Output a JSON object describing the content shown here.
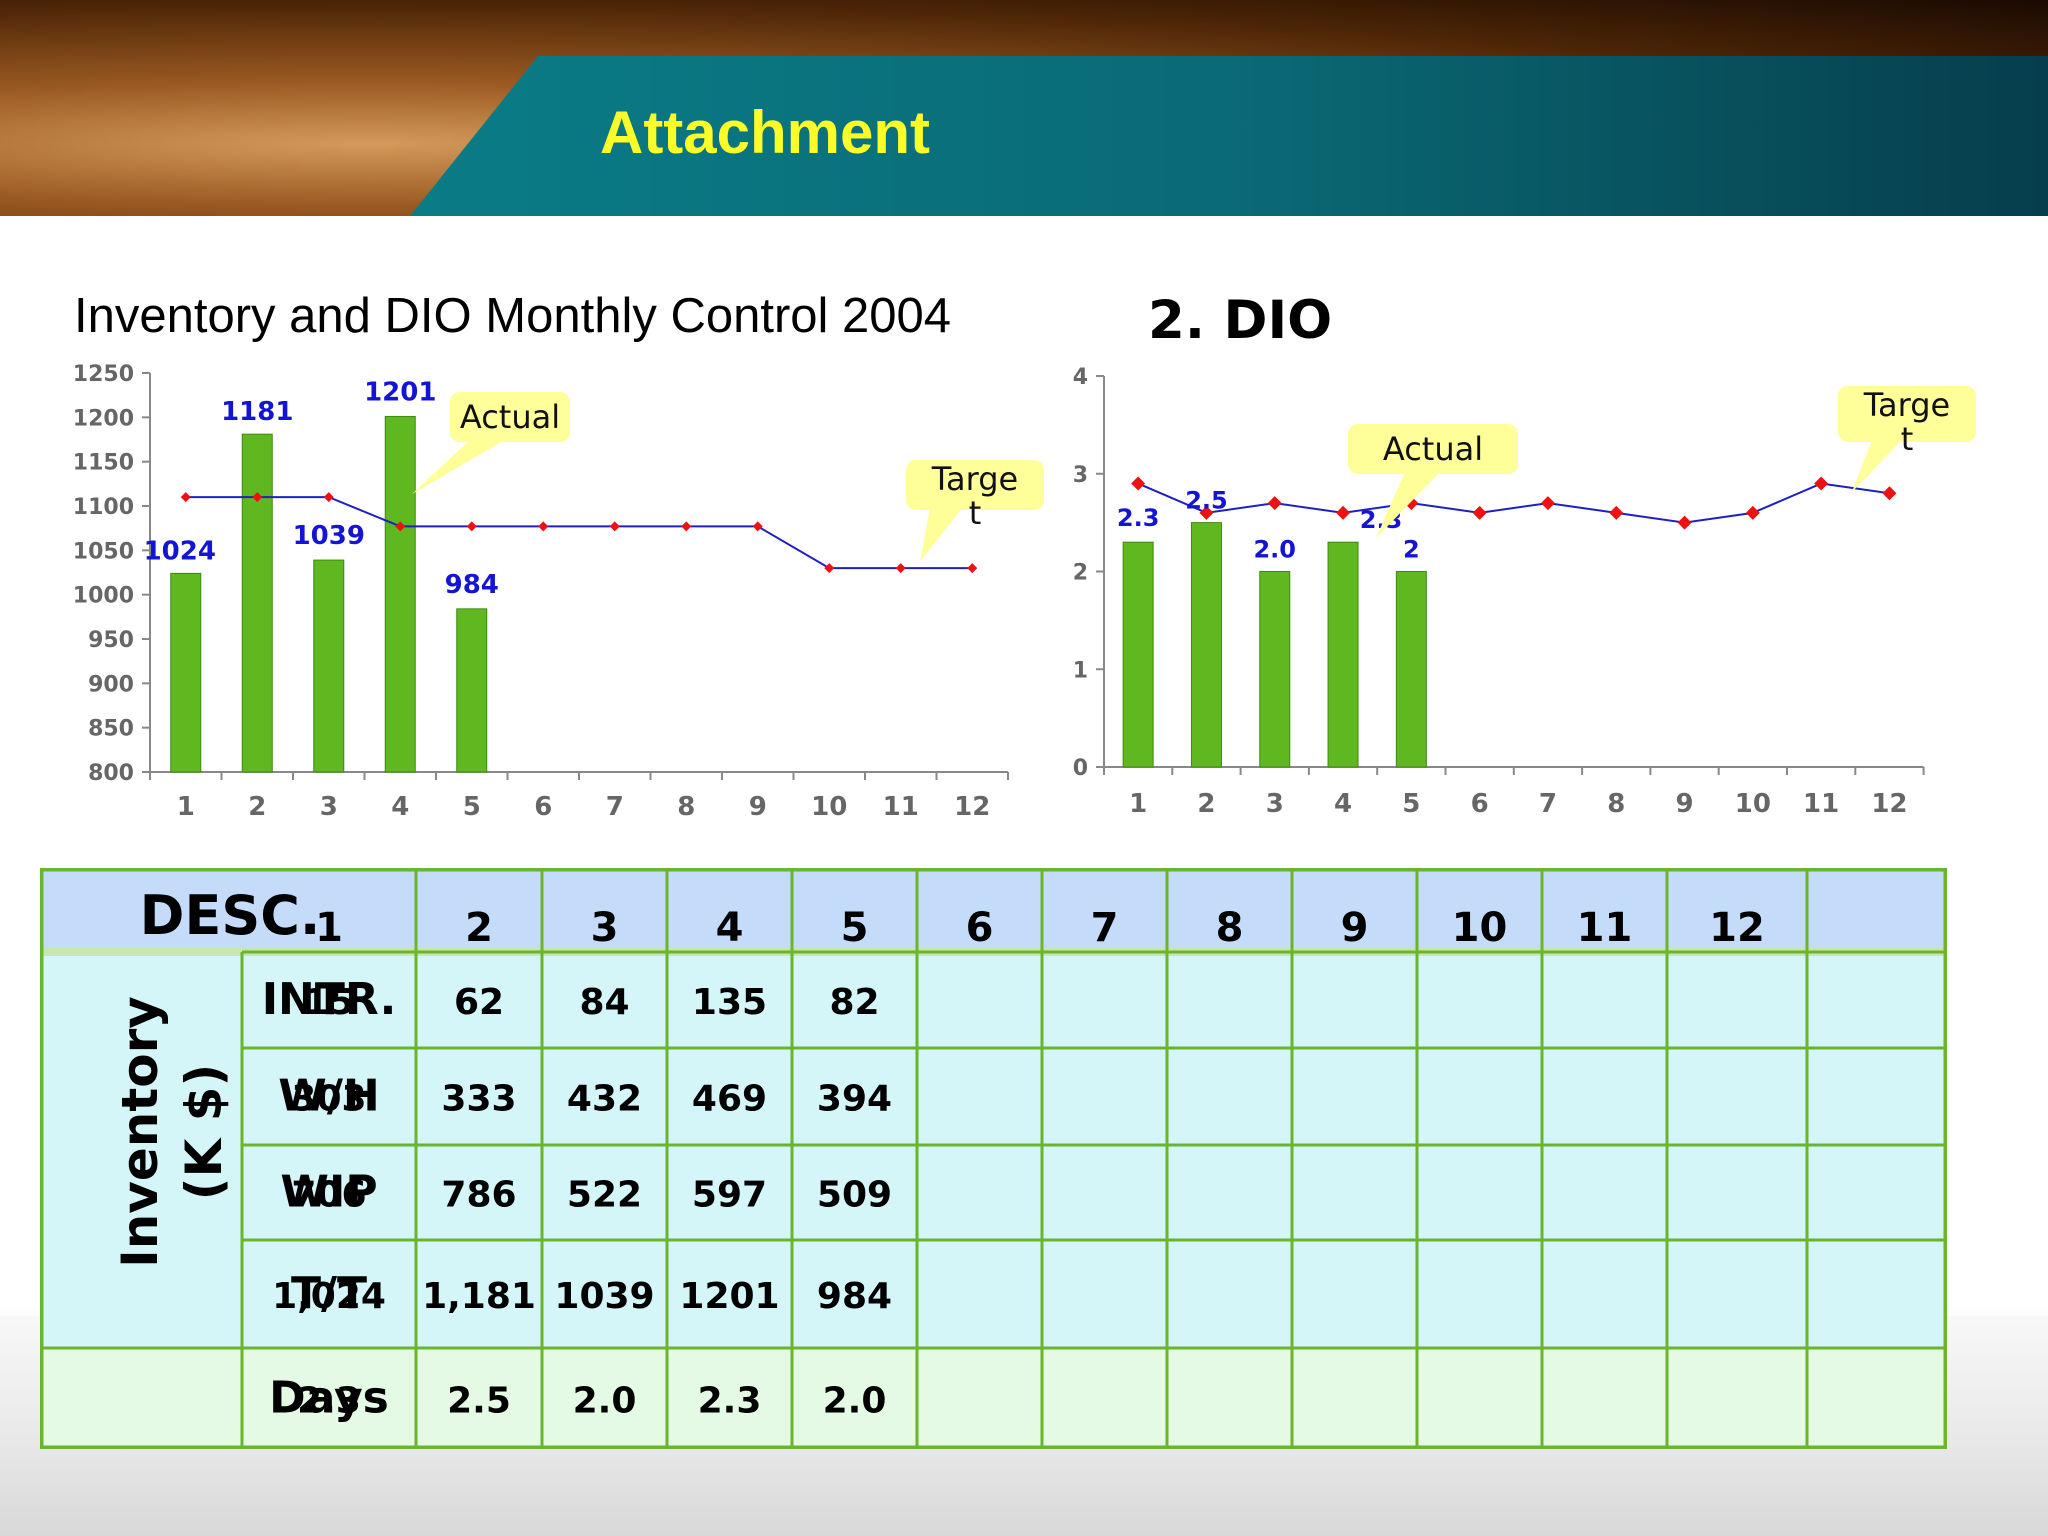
{
  "page": {
    "title": "Attachment"
  },
  "colors": {
    "bar": "#5fb81f",
    "bar_dark": "#3e8a10",
    "target_line": "#2020c0",
    "target_marker": "#ee1111",
    "label": "#1414d4",
    "callout": "#ffff99",
    "header_fill": "#c4dcfa",
    "body_fill": "#d4f6f8",
    "grid_border": "#6ab42e",
    "title_text": "#fcfc28"
  },
  "callouts": {
    "actual": "Actual",
    "target": "Targe\nt"
  },
  "chart_data": [
    {
      "type": "bar",
      "title": "Inventory and DIO Monthly  Control 2004",
      "categories": [
        "1",
        "2",
        "3",
        "4",
        "5",
        "6",
        "7",
        "8",
        "9",
        "10",
        "11",
        "12"
      ],
      "series": [
        {
          "name": "Actual",
          "values": [
            1024,
            1181,
            1039,
            1201,
            984,
            null,
            null,
            null,
            null,
            null,
            null,
            null
          ],
          "labels": [
            "1024",
            "1181",
            "1039",
            "1201",
            "984"
          ]
        },
        {
          "name": "Target",
          "kind": "line",
          "values": [
            1110,
            1110,
            1110,
            1077,
            1077,
            1077,
            1077,
            1077,
            1077,
            1030,
            1030,
            1030
          ]
        }
      ],
      "ylim": [
        800,
        1250
      ],
      "yticks": [
        800,
        850,
        900,
        950,
        1000,
        1050,
        1100,
        1150,
        1200,
        1250
      ],
      "grid": false
    },
    {
      "type": "bar",
      "title": "2. DIO",
      "categories": [
        "1",
        "2",
        "3",
        "4",
        "5",
        "6",
        "7",
        "8",
        "9",
        "10",
        "11",
        "12"
      ],
      "series": [
        {
          "name": "Actual",
          "values": [
            2.3,
            2.5,
            2.0,
            2.3,
            2.0,
            null,
            null,
            null,
            null,
            null,
            null,
            null
          ],
          "labels": [
            "2.3",
            "2.5",
            "2.0",
            "2.3",
            "2"
          ]
        },
        {
          "name": "Target",
          "kind": "line",
          "values": [
            2.9,
            2.6,
            2.7,
            2.6,
            2.7,
            2.6,
            2.7,
            2.6,
            2.5,
            2.6,
            2.9,
            2.8
          ]
        }
      ],
      "ylim": [
        0,
        4
      ],
      "yticks": [
        0,
        1,
        2,
        3,
        4
      ],
      "grid": false
    }
  ],
  "table": {
    "desc_header": "DESC.",
    "months": [
      "1",
      "2",
      "3",
      "4",
      "5",
      "6",
      "7",
      "8",
      "9",
      "10",
      "11",
      "12"
    ],
    "group_label_line1": "Inventory",
    "group_label_line2": "(K $)",
    "rows": [
      {
        "label": "INTR.",
        "values": [
          "15",
          "62",
          "84",
          "135",
          "82",
          "",
          "",
          "",
          "",
          "",
          "",
          ""
        ]
      },
      {
        "label": "W/H",
        "values": [
          "303",
          "333",
          "432",
          "469",
          "394",
          "",
          "",
          "",
          "",
          "",
          "",
          ""
        ]
      },
      {
        "label": "WIP",
        "values": [
          "706",
          "786",
          "522",
          "597",
          "509",
          "",
          "",
          "",
          "",
          "",
          "",
          ""
        ]
      },
      {
        "label": "T/T",
        "values": [
          "1,024",
          "1,181",
          "1039",
          "1201",
          "984",
          "",
          "",
          "",
          "",
          "",
          "",
          ""
        ]
      },
      {
        "label": "Days",
        "values": [
          "2.3",
          "2.5",
          "2.0",
          "2.3",
          "2.0",
          "",
          "",
          "",
          "",
          "",
          "",
          ""
        ]
      }
    ]
  }
}
